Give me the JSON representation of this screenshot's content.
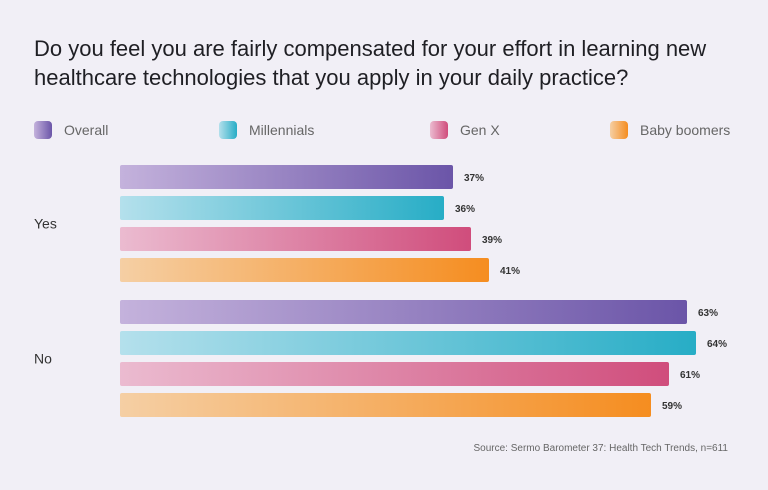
{
  "chart_data": {
    "type": "bar",
    "orientation": "horizontal",
    "title": "Do you feel you are fairly compensated for your effort in learning new healthcare technologies that you apply in your daily practice?",
    "categories": [
      "Yes",
      "No"
    ],
    "series": [
      {
        "name": "Overall",
        "values": [
          37,
          63
        ],
        "color_start": "#c4b2dc",
        "color_end": "#6b55a8"
      },
      {
        "name": "Millennials",
        "values": [
          36,
          64
        ],
        "color_start": "#b4e0ec",
        "color_end": "#27adc6"
      },
      {
        "name": "Gen X",
        "values": [
          39,
          61
        ],
        "color_start": "#ebbbd0",
        "color_end": "#d04d7c"
      },
      {
        "name": "Baby boomers",
        "values": [
          41,
          59
        ],
        "color_start": "#f5cfa4",
        "color_end": "#f58d20"
      }
    ],
    "value_suffix": "%",
    "legend_position": "top",
    "grid": false,
    "source": "Source: Sermo Barometer 37: Health Tech Trends, n=611"
  }
}
